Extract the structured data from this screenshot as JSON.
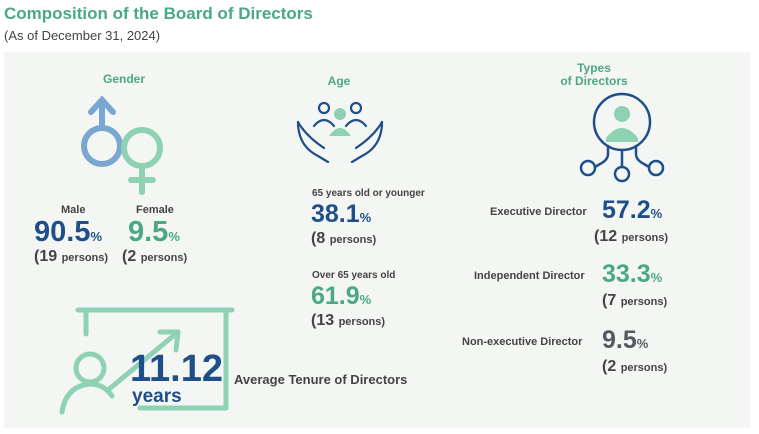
{
  "title": "Composition of the Board of Directors",
  "subtitle": "(As of December 31, 2024)",
  "gender": {
    "heading": "Gender",
    "male": {
      "label": "Male",
      "value": "90.5",
      "unit": "%",
      "persons_open": "(19",
      "persons_word": "persons)"
    },
    "female": {
      "label": "Female",
      "value": "9.5",
      "unit": "%",
      "persons_open": "(2",
      "persons_word": "persons)"
    }
  },
  "age": {
    "heading": "Age",
    "young": {
      "label": "65 years old or younger",
      "value": "38.1",
      "unit": "%",
      "persons_open": "(8",
      "persons_word": "persons)"
    },
    "old": {
      "label": "Over 65 years old",
      "value": "61.9",
      "unit": "%",
      "persons_open": "(13",
      "persons_word": "persons)"
    }
  },
  "types": {
    "heading_line1": "Types",
    "heading_line2": "of Directors",
    "executive": {
      "label": "Executive Director",
      "value": "57.2",
      "unit": "%",
      "persons_open": "(12",
      "persons_word": "persons)"
    },
    "independent": {
      "label": "Independent Director",
      "value": "33.3",
      "unit": "%",
      "persons_open": "(7",
      "persons_word": "persons)"
    },
    "nonexec": {
      "label": "Non-executive Director",
      "value": "9.5",
      "unit": "%",
      "persons_open": "(2",
      "persons_word": "persons)"
    }
  },
  "tenure": {
    "value": "11.12",
    "unit": "years",
    "label": "Average Tenure of Directors"
  },
  "colors": {
    "green": "#4aa886",
    "blue": "#1f4f8a",
    "gray": "#555a60",
    "panel": "#f3f6f2"
  }
}
